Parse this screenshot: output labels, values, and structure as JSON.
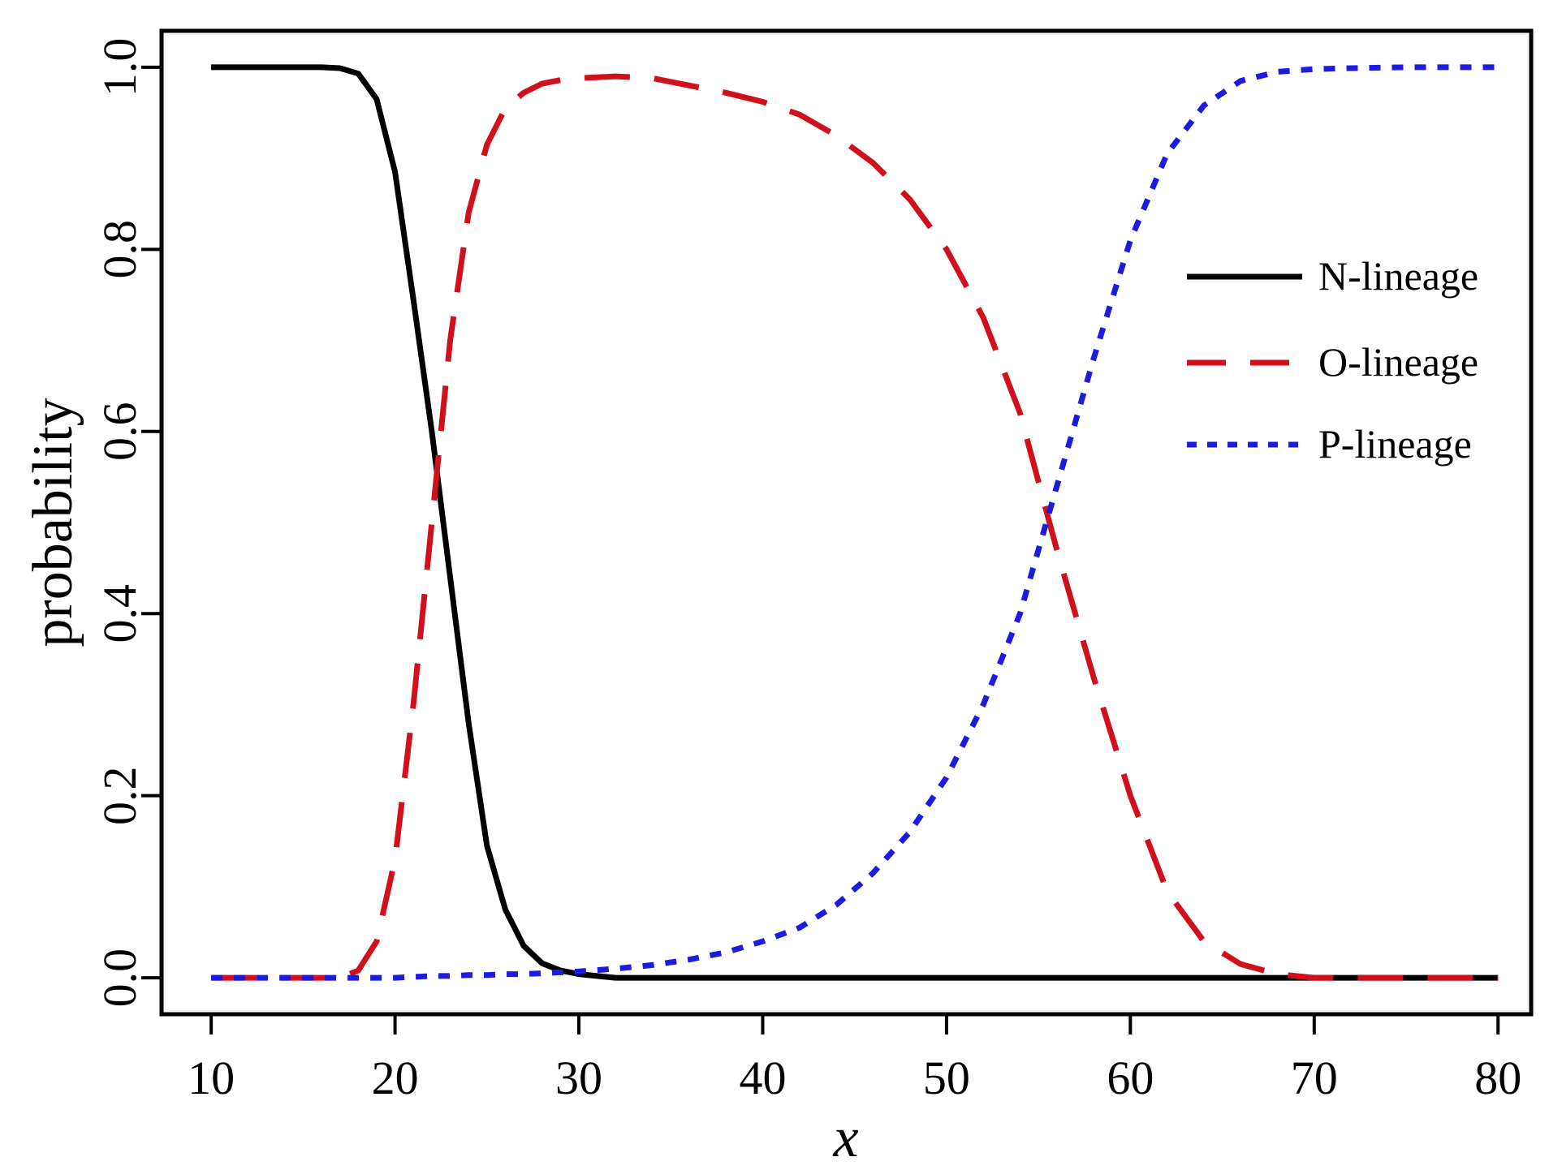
{
  "chart_data": {
    "type": "line",
    "xlabel": "x",
    "ylabel": "probability",
    "xlim": [
      7.3,
      81.8
    ],
    "ylim": [
      -0.04,
      1.04
    ],
    "xticks": [
      10,
      20,
      30,
      40,
      50,
      60,
      70,
      80
    ],
    "xtick_labels": [
      "10",
      "20",
      "30",
      "40",
      "50",
      "60",
      "70",
      "80"
    ],
    "yticks": [
      0.0,
      0.2,
      0.4,
      0.6,
      0.8,
      1.0
    ],
    "ytick_labels": [
      "0.0",
      "0.2",
      "0.4",
      "0.6",
      "0.8",
      "1.0"
    ],
    "grid": false,
    "legend_position": "right",
    "x": [
      10,
      12,
      14,
      16,
      17,
      18,
      19,
      20,
      21,
      22,
      23,
      24,
      25,
      26,
      27,
      28,
      29,
      30,
      32,
      34,
      36,
      38,
      40,
      42,
      44,
      46,
      48,
      50,
      52,
      54,
      55,
      56,
      58,
      60,
      62,
      64,
      66,
      68,
      70,
      72,
      75,
      80
    ],
    "series": [
      {
        "name": "N-lineage",
        "color": "#000000",
        "style": "solid",
        "values": [
          1.0,
          1.0,
          1.0,
          1.0,
          0.999,
          0.993,
          0.965,
          0.885,
          0.745,
          0.6,
          0.44,
          0.28,
          0.145,
          0.075,
          0.035,
          0.016,
          0.008,
          0.004,
          0.0,
          0.0,
          0.0,
          0.0,
          0.0,
          0.0,
          0.0,
          0.0,
          0.0,
          0.0,
          0.0,
          0.0,
          0.0,
          0.0,
          0.0,
          0.0,
          0.0,
          0.0,
          0.0,
          0.0,
          0.0,
          0.0,
          0.0,
          0.0
        ]
      },
      {
        "name": "O-lineage",
        "color": "#d0101c",
        "style": "dashed",
        "values": [
          0.0,
          0.0,
          0.0,
          0.0,
          0.0,
          0.008,
          0.04,
          0.13,
          0.3,
          0.5,
          0.7,
          0.84,
          0.915,
          0.955,
          0.972,
          0.982,
          0.986,
          0.988,
          0.99,
          0.988,
          0.98,
          0.972,
          0.962,
          0.948,
          0.925,
          0.895,
          0.855,
          0.8,
          0.725,
          0.62,
          0.545,
          0.47,
          0.33,
          0.2,
          0.095,
          0.04,
          0.015,
          0.004,
          0.0,
          0.0,
          0.0,
          0.0
        ]
      },
      {
        "name": "P-lineage",
        "color": "#1c1ce0",
        "style": "dotted",
        "values": [
          0.0,
          0.0,
          0.0,
          0.0,
          0.0,
          0.0,
          0.0,
          0.0,
          0.001,
          0.002,
          0.002,
          0.003,
          0.003,
          0.004,
          0.004,
          0.005,
          0.006,
          0.007,
          0.01,
          0.014,
          0.02,
          0.028,
          0.04,
          0.055,
          0.08,
          0.115,
          0.16,
          0.22,
          0.3,
          0.4,
          0.47,
          0.54,
          0.68,
          0.81,
          0.905,
          0.958,
          0.985,
          0.995,
          0.998,
          0.999,
          1.0,
          1.0
        ]
      }
    ]
  }
}
